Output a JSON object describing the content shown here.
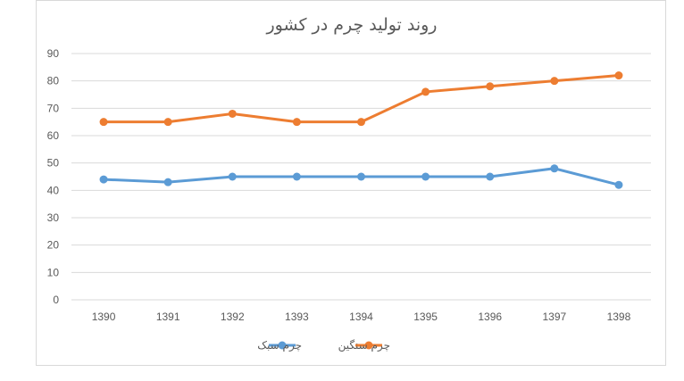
{
  "colors": {
    "light": "#5b9bd5",
    "heavy": "#ed7d31",
    "grid": "#d9d9d9",
    "text": "#595959"
  },
  "chart_data": {
    "type": "line",
    "title": "روند تولید چرم در کشور",
    "xlabel": "",
    "ylabel": "",
    "categories": [
      "1390",
      "1391",
      "1392",
      "1393",
      "1394",
      "1395",
      "1396",
      "1397",
      "1398"
    ],
    "ylim": [
      0,
      90
    ],
    "yticks": [
      "0",
      "10",
      "20",
      "30",
      "40",
      "50",
      "60",
      "70",
      "80",
      "90"
    ],
    "grid": true,
    "legend_position": "bottom",
    "series": [
      {
        "name": "چرم سبک",
        "values": [
          44,
          43,
          45,
          45,
          45,
          45,
          45,
          48,
          42
        ]
      },
      {
        "name": "چرم سنگین",
        "values": [
          65,
          65,
          68,
          65,
          65,
          76,
          78,
          80,
          82
        ]
      }
    ]
  }
}
